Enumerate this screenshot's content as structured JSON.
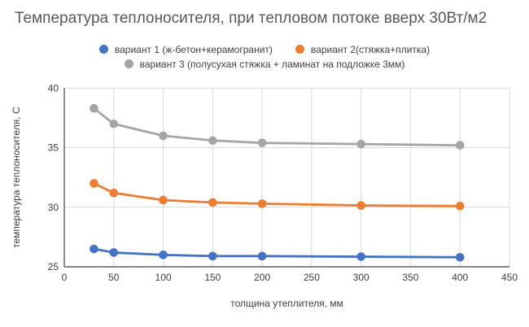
{
  "title": "Температура теплоносителя, при тепловом потоке вверх 30Вт/м2",
  "chart_data": {
    "type": "line",
    "x": [
      30,
      50,
      100,
      150,
      200,
      300,
      400
    ],
    "series": [
      {
        "name": "вариант 1 (ж-бетон+керамогранит)",
        "color": "#4472C4",
        "values": [
          26.5,
          26.2,
          26.0,
          25.9,
          25.9,
          25.85,
          25.8
        ]
      },
      {
        "name": "вариант 2(стяжка+плитка)",
        "color": "#ED7D31",
        "values": [
          32.0,
          31.2,
          30.6,
          30.4,
          30.3,
          30.15,
          30.1
        ]
      },
      {
        "name": "вариант 3 (полусухая стяжка + ламинат на подложке 3мм)",
        "color": "#A5A5A5",
        "values": [
          38.3,
          37.0,
          36.0,
          35.6,
          35.4,
          35.3,
          35.2
        ]
      }
    ],
    "xlabel": "толщина утеплителя, мм",
    "ylabel": "температура теплоносителя, С",
    "xlim": [
      0,
      450
    ],
    "ylim": [
      25,
      40
    ],
    "x_ticks": [
      0,
      50,
      100,
      150,
      200,
      250,
      300,
      350,
      400,
      450
    ],
    "y_ticks": [
      25,
      30,
      35,
      40
    ],
    "grid": true,
    "legend_position": "top",
    "legend_rows": [
      [
        0,
        1
      ],
      [
        2
      ]
    ]
  },
  "colors": {
    "title_text": "#595959",
    "tick_text": "#404040",
    "gridline": "#D9D9D9",
    "axis_line": "#404040",
    "background": "#FFFFFF"
  }
}
